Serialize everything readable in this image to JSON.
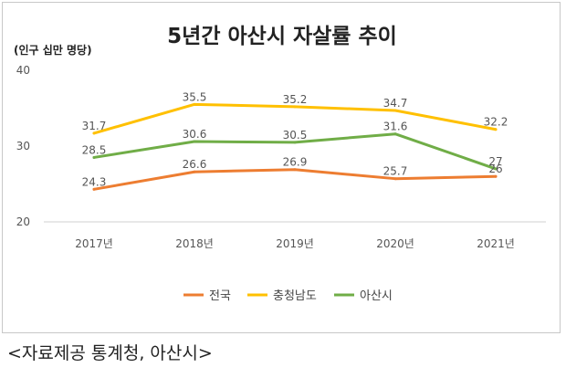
{
  "chart_data": {
    "type": "line",
    "title": "5년간 아산시 자살률 추이",
    "ylabel": "(인구 십만 명당)",
    "xlabel": "",
    "categories": [
      "2017년",
      "2018년",
      "2019년",
      "2020년",
      "2021년"
    ],
    "ylim": [
      20,
      40
    ],
    "yticks": [
      20,
      30,
      40
    ],
    "grid": false,
    "legend_position": "bottom",
    "series": [
      {
        "name": "전국",
        "values": [
          24.3,
          26.6,
          26.9,
          25.7,
          26
        ],
        "color": "#ED7D31"
      },
      {
        "name": "충청남도",
        "values": [
          31.7,
          35.5,
          35.2,
          34.7,
          32.2
        ],
        "color": "#FFC000"
      },
      {
        "name": "아산시",
        "values": [
          28.5,
          30.6,
          30.5,
          31.6,
          27
        ],
        "color": "#70AD47"
      }
    ]
  },
  "caption": "<자료제공 통계청, 아산시>"
}
